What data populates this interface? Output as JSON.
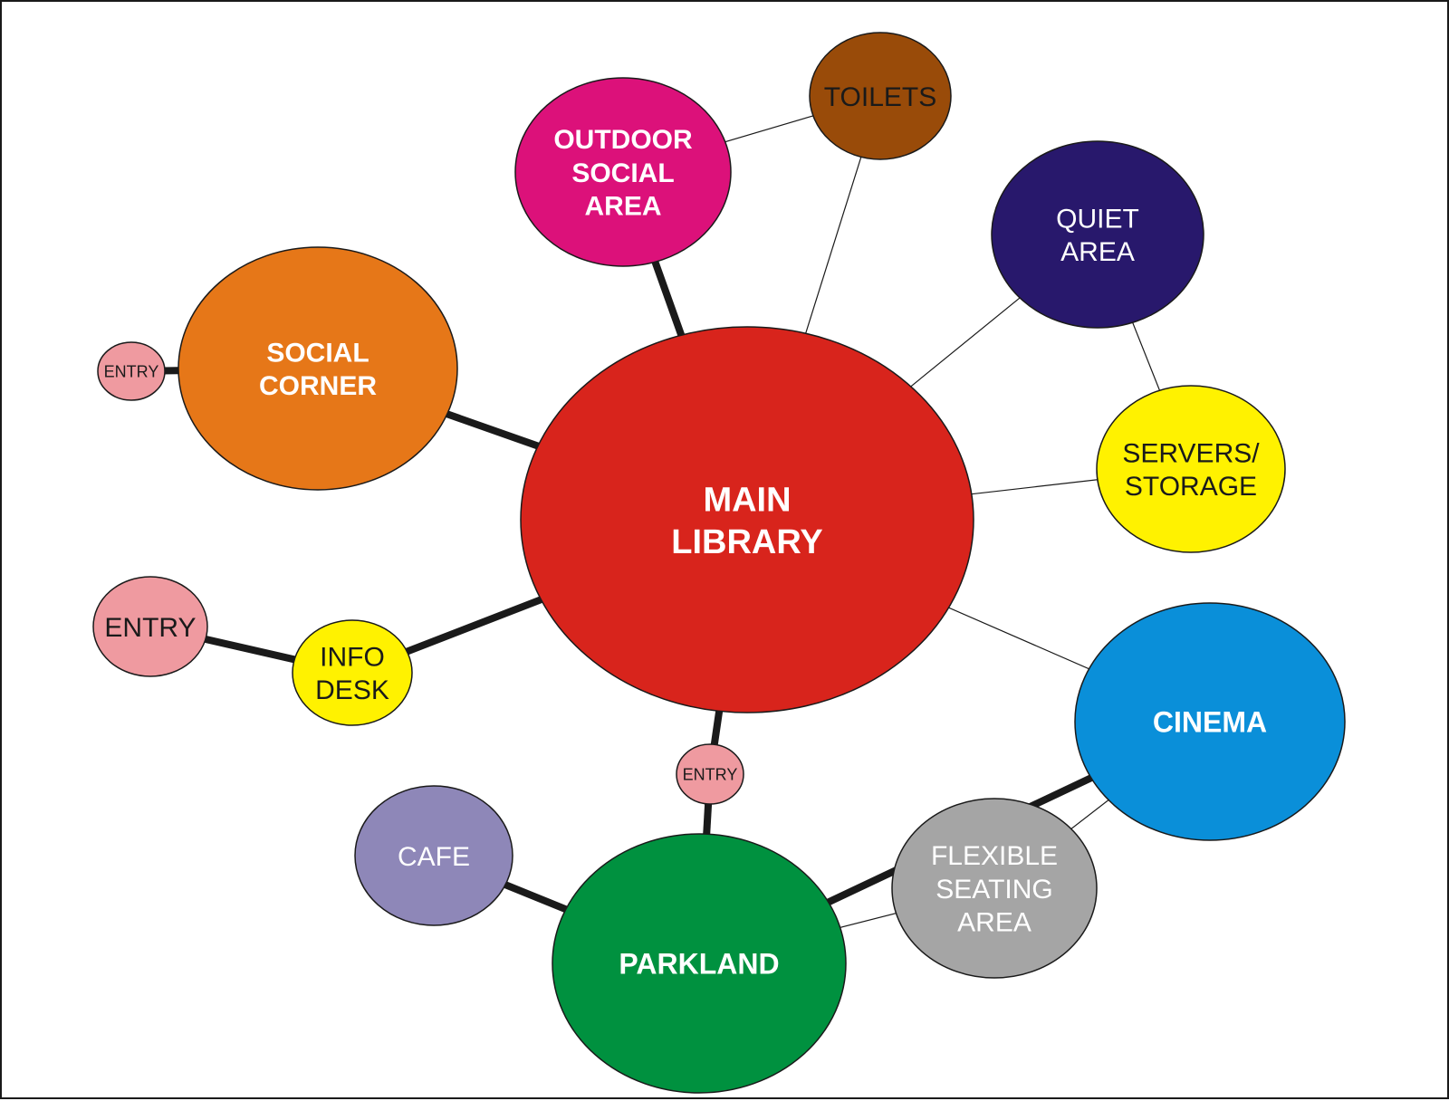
{
  "diagram": {
    "nodes": [
      {
        "id": "main_library",
        "lines": [
          "MAIN",
          "LIBRARY"
        ],
        "fill": "#d8241c",
        "text_color": "#ffffff",
        "bold": true
      },
      {
        "id": "outdoor_social_area",
        "lines": [
          "OUTDOOR",
          "SOCIAL",
          "AREA"
        ],
        "fill": "#dc117a",
        "text_color": "#ffffff",
        "bold": true
      },
      {
        "id": "toilets",
        "lines": [
          "TOILETS"
        ],
        "fill": "#994b09",
        "text_color": "#1a1a1a",
        "bold": false
      },
      {
        "id": "quiet_area",
        "lines": [
          "QUIET",
          "AREA"
        ],
        "fill": "#28186c",
        "text_color": "#ffffff",
        "bold": false
      },
      {
        "id": "servers_storage",
        "lines": [
          "SERVERS/",
          "STORAGE"
        ],
        "fill": "#fff200",
        "text_color": "#1a1a1a",
        "bold": false
      },
      {
        "id": "cinema",
        "lines": [
          "CINEMA"
        ],
        "fill": "#0a8fd9",
        "text_color": "#ffffff",
        "bold": true
      },
      {
        "id": "flexible_seating_area",
        "lines": [
          "FLEXIBLE",
          "SEATING",
          "AREA"
        ],
        "fill": "#a5a5a5",
        "text_color": "#ffffff",
        "bold": false
      },
      {
        "id": "parkland",
        "lines": [
          "PARKLAND"
        ],
        "fill": "#00913f",
        "text_color": "#ffffff",
        "bold": true
      },
      {
        "id": "cafe",
        "lines": [
          "CAFE"
        ],
        "fill": "#8e87b8",
        "text_color": "#ffffff",
        "bold": false
      },
      {
        "id": "entry_bottom",
        "lines": [
          "ENTRY"
        ],
        "fill": "#ef9aa0",
        "text_color": "#1a1a1a",
        "bold": false
      },
      {
        "id": "info_desk",
        "lines": [
          "INFO",
          "DESK"
        ],
        "fill": "#fff200",
        "text_color": "#1a1a1a",
        "bold": false
      },
      {
        "id": "entry_left",
        "lines": [
          "ENTRY"
        ],
        "fill": "#ef9aa0",
        "text_color": "#1a1a1a",
        "bold": false
      },
      {
        "id": "social_corner",
        "lines": [
          "SOCIAL",
          "CORNER"
        ],
        "fill": "#e67718",
        "text_color": "#ffffff",
        "bold": true
      },
      {
        "id": "entry_top_left",
        "lines": [
          "ENTRY"
        ],
        "fill": "#ef9aa0",
        "text_color": "#1a1a1a",
        "bold": false
      }
    ],
    "edges": [
      {
        "from": "main_library",
        "to": "outdoor_social_area",
        "weight": "thick"
      },
      {
        "from": "main_library",
        "to": "toilets",
        "weight": "thin"
      },
      {
        "from": "outdoor_social_area",
        "to": "toilets",
        "weight": "thin"
      },
      {
        "from": "main_library",
        "to": "quiet_area",
        "weight": "thin"
      },
      {
        "from": "quiet_area",
        "to": "servers_storage",
        "weight": "thin"
      },
      {
        "from": "main_library",
        "to": "servers_storage",
        "weight": "thin"
      },
      {
        "from": "main_library",
        "to": "cinema",
        "weight": "thin"
      },
      {
        "from": "main_library",
        "to": "social_corner",
        "weight": "thick"
      },
      {
        "from": "social_corner",
        "to": "entry_top_left",
        "weight": "thick"
      },
      {
        "from": "main_library",
        "to": "info_desk",
        "weight": "thick"
      },
      {
        "from": "info_desk",
        "to": "entry_left",
        "weight": "thick"
      },
      {
        "from": "main_library",
        "to": "entry_bottom",
        "weight": "thick"
      },
      {
        "from": "entry_bottom",
        "to": "parkland",
        "weight": "thick"
      },
      {
        "from": "parkland",
        "to": "cinema",
        "weight": "thick"
      },
      {
        "from": "parkland",
        "to": "cafe",
        "weight": "thick"
      },
      {
        "from": "parkland",
        "to": "flexible_seating_area",
        "weight": "thin"
      },
      {
        "from": "flexible_seating_area",
        "to": "cinema",
        "weight": "thin"
      }
    ]
  }
}
